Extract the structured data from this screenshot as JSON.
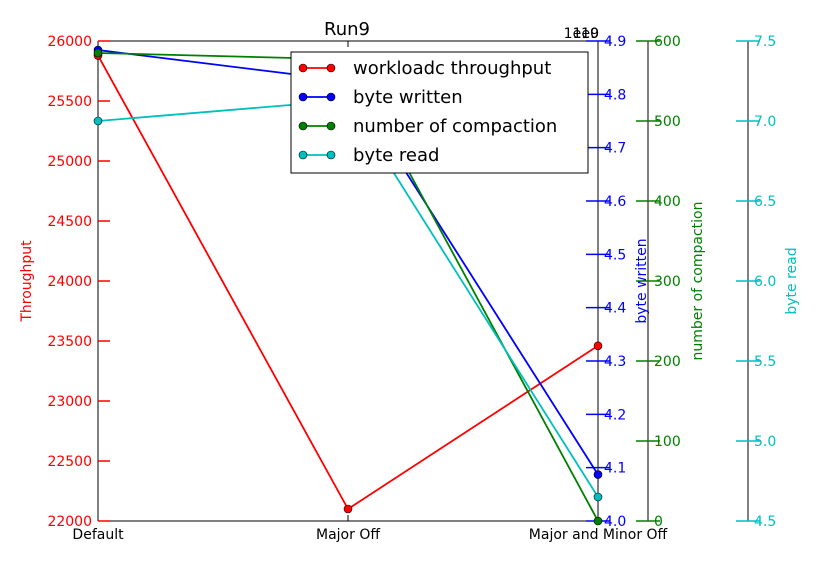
{
  "chart_data": {
    "type": "line",
    "title": "Run9",
    "categories": [
      "Default",
      "Major Off",
      "Major and Minor Off"
    ],
    "axes": [
      {
        "id": "throughput",
        "label": "Throughput",
        "color": "#ff0000",
        "side": "left",
        "lim": [
          22000,
          26000
        ],
        "ticks": [
          "22000",
          "22500",
          "23000",
          "23500",
          "24000",
          "24500",
          "25000",
          "25500",
          "26000"
        ]
      },
      {
        "id": "bytes_written",
        "label": "byte written",
        "color": "#0000ff",
        "side": "right",
        "lim": [
          4.0,
          4.9
        ],
        "offset_text": "1e10",
        "ticks": [
          "4.0",
          "4.1",
          "4.2",
          "4.3",
          "4.4",
          "4.5",
          "4.6",
          "4.7",
          "4.8",
          "4.9"
        ]
      },
      {
        "id": "compactions",
        "label": "number of compaction",
        "color": "#008000",
        "side": "right",
        "lim": [
          0,
          600
        ],
        "ticks": [
          "0",
          "100",
          "200",
          "300",
          "400",
          "500",
          "600"
        ]
      },
      {
        "id": "bytes_read",
        "label": "byte read",
        "color": "#00bfbf",
        "side": "right",
        "lim": [
          4.5,
          7.5
        ],
        "offset_text": "1e9",
        "ticks": [
          "4.5",
          "5.0",
          "5.5",
          "6.0",
          "6.5",
          "7.0",
          "7.5"
        ]
      }
    ],
    "series": [
      {
        "name": "workloadc throughput",
        "axis": "throughput",
        "color": "#ff0000",
        "values": [
          25880,
          22100,
          23460
        ]
      },
      {
        "name": "byte written",
        "axis": "bytes_written",
        "color": "#0000ff",
        "values": [
          4.883,
          4.825,
          4.087
        ]
      },
      {
        "name": "number of compaction",
        "axis": "compactions",
        "color": "#008000",
        "values": [
          585,
          577,
          0
        ]
      },
      {
        "name": "byte read",
        "axis": "bytes_read",
        "color": "#00bfbf",
        "values": [
          7.0,
          7.13,
          4.65
        ]
      }
    ],
    "legend": "top-right",
    "grid": false
  }
}
